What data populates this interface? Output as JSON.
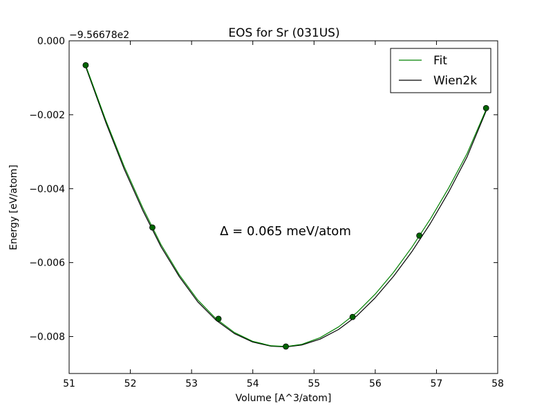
{
  "chart_data": {
    "type": "line",
    "title": "EOS for Sr (031US)",
    "xlabel": "Volume [A^3/atom]",
    "ylabel": "Energy [eV/atom]",
    "offset_label": "−9.56678e2",
    "xlim": [
      51,
      58
    ],
    "ylim": [
      -0.009,
      0.0
    ],
    "x_ticks": [
      51,
      52,
      53,
      54,
      55,
      56,
      57,
      58
    ],
    "x_tick_labels": [
      "51",
      "52",
      "53",
      "54",
      "55",
      "56",
      "57",
      "58"
    ],
    "y_ticks": [
      0.0,
      -0.002,
      -0.004,
      -0.006,
      -0.008
    ],
    "y_tick_labels": [
      "0.000",
      "−0.002",
      "−0.004",
      "−0.006",
      "−0.008"
    ],
    "legend_position": "top-right",
    "annotation": "Δ = 0.065 meV/atom",
    "series": [
      {
        "name": "Fit",
        "color": "#008000",
        "x": [
          51.27,
          51.6,
          51.9,
          52.2,
          52.5,
          52.8,
          53.1,
          53.4,
          53.7,
          54.0,
          54.3,
          54.55,
          54.8,
          55.1,
          55.4,
          55.7,
          56.0,
          56.3,
          56.6,
          56.9,
          57.2,
          57.5,
          57.82
        ],
        "y": [
          -0.00066,
          -0.00215,
          -0.0034,
          -0.00451,
          -0.00551,
          -0.00633,
          -0.00701,
          -0.00752,
          -0.00789,
          -0.00813,
          -0.00825,
          -0.00827,
          -0.00821,
          -0.00803,
          -0.00774,
          -0.00735,
          -0.00685,
          -0.00626,
          -0.00558,
          -0.00482,
          -0.00398,
          -0.00305,
          -0.00182
        ]
      },
      {
        "name": "Wien2k",
        "color": "#000000",
        "x": [
          51.27,
          51.6,
          51.9,
          52.2,
          52.5,
          52.8,
          53.1,
          53.4,
          53.7,
          54.0,
          54.3,
          54.55,
          54.8,
          55.1,
          55.4,
          55.7,
          56.0,
          56.3,
          56.6,
          56.9,
          57.2,
          57.5,
          57.82
        ],
        "y": [
          -0.0007,
          -0.00221,
          -0.00347,
          -0.00458,
          -0.00557,
          -0.00638,
          -0.00706,
          -0.00756,
          -0.00792,
          -0.00815,
          -0.00826,
          -0.00828,
          -0.00823,
          -0.00807,
          -0.00781,
          -0.00744,
          -0.00695,
          -0.00637,
          -0.0057,
          -0.00494,
          -0.00409,
          -0.00314,
          -0.00186
        ]
      },
      {
        "name": "data",
        "marker_color": "#006400",
        "x": [
          51.27,
          52.36,
          53.44,
          54.54,
          55.63,
          56.72,
          57.81
        ],
        "y": [
          -0.00066,
          -0.00505,
          -0.00752,
          -0.00827,
          -0.00747,
          -0.00527,
          -0.00182
        ]
      }
    ]
  }
}
